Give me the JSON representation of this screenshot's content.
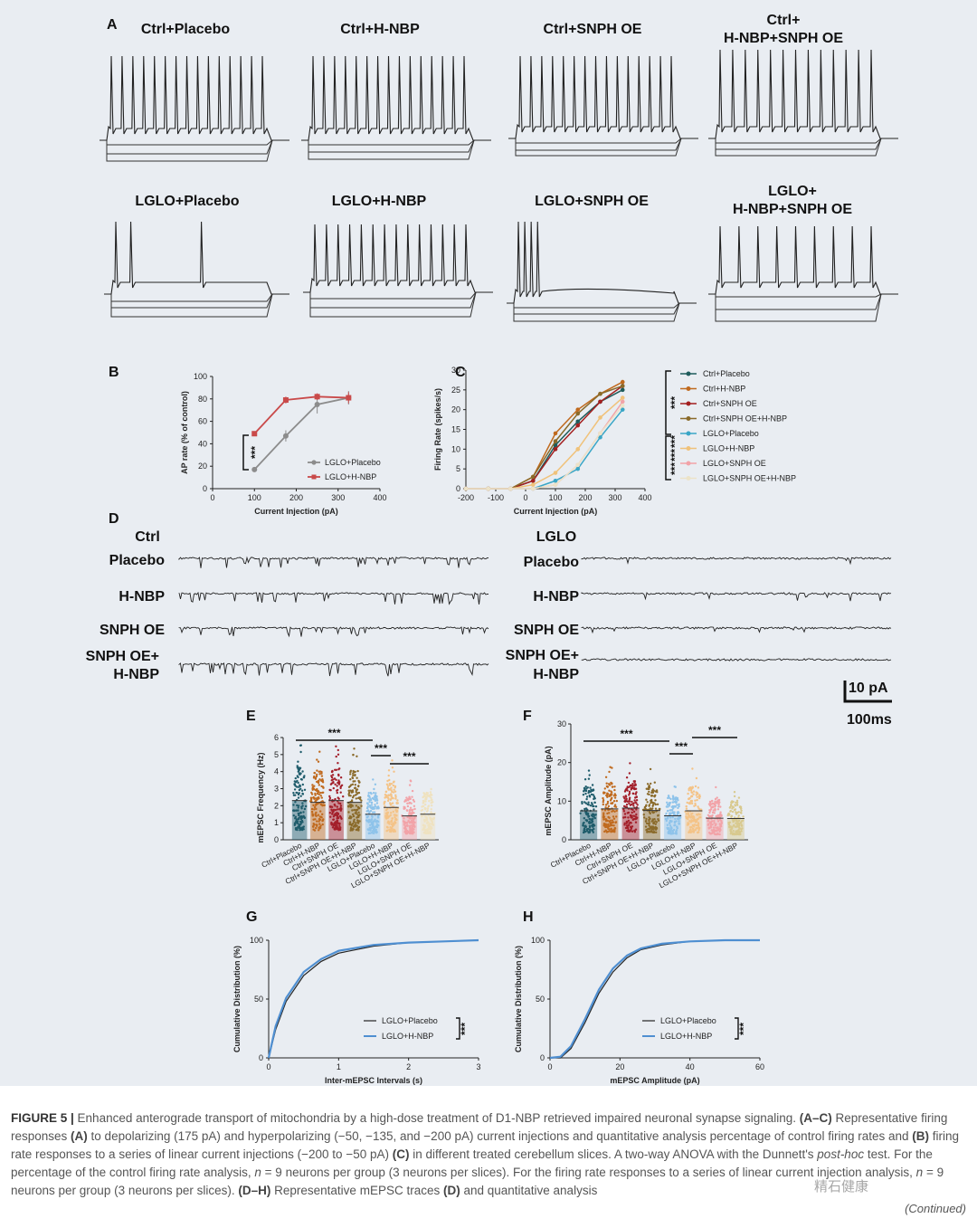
{
  "panel_a": {
    "label": "A",
    "titles": [
      "Ctrl+Placebo",
      "Ctrl+H-NBP",
      "Ctrl+SNPH OE",
      "Ctrl+",
      "H-NBP+SNPH  OE",
      "LGLO+Placebo",
      "LGLO+H-NBP",
      "LGLO+SNPH OE",
      "LGLO+",
      "H-NBP+SNPH  OE"
    ]
  },
  "chart_data": [
    {
      "panel": "B",
      "type": "line",
      "xlabel": "Current Injection (pA)",
      "ylabel": "AP rate (% of control)",
      "xlim": [
        0,
        400
      ],
      "ylim": [
        0,
        100
      ],
      "xticks": [
        "0",
        "100",
        "200",
        "300",
        "400"
      ],
      "yticks": [
        "0",
        "20",
        "40",
        "60",
        "80",
        "100"
      ],
      "x": [
        100,
        175,
        250,
        325
      ],
      "series": [
        {
          "name": "LGLO+Placebo",
          "color": "#8c8c8c",
          "values": [
            17,
            47,
            75,
            81
          ],
          "err": [
            1,
            5,
            8,
            6
          ]
        },
        {
          "name": "LGLO+H-NBP",
          "color": "#c94a4a",
          "values": [
            49,
            79,
            82,
            81
          ],
          "err": [
            1,
            3,
            3,
            5
          ]
        }
      ],
      "significance": "***"
    },
    {
      "panel": "C",
      "type": "line",
      "xlabel": "Current Injection (pA)",
      "ylabel": "Firing Rate (spikes/s)",
      "xlim": [
        -200,
        400
      ],
      "ylim": [
        0,
        30
      ],
      "xticks": [
        "-200",
        "-100",
        "0",
        "100",
        "200",
        "300",
        "400"
      ],
      "yticks": [
        "0",
        "5",
        "10",
        "15",
        "20",
        "25",
        "30"
      ],
      "x": [
        -200,
        -125,
        -50,
        25,
        100,
        175,
        250,
        325
      ],
      "series": [
        {
          "name": "Ctrl+Placebo",
          "color": "#1f5c5c",
          "values": [
            0,
            0,
            0,
            2,
            11,
            17,
            22,
            25
          ]
        },
        {
          "name": "Ctrl+H-NBP",
          "color": "#c06a1e",
          "values": [
            0,
            0,
            0,
            3,
            14,
            20,
            24,
            27
          ]
        },
        {
          "name": "Ctrl+SNPH OE",
          "color": "#a31f1f",
          "values": [
            0,
            0,
            0,
            2,
            10,
            16,
            22,
            26
          ]
        },
        {
          "name": "Ctrl+SNPH OE+H-NBP",
          "color": "#8a6a2a",
          "values": [
            0,
            0,
            0,
            3,
            12,
            19,
            24,
            26
          ]
        },
        {
          "name": "LGLO+Placebo",
          "color": "#3aa6c6",
          "values": [
            0,
            0,
            0,
            0,
            2,
            5,
            13,
            20
          ]
        },
        {
          "name": "LGLO+H-NBP",
          "color": "#f0c27a",
          "values": [
            0,
            0,
            0,
            1,
            4,
            10,
            18,
            23
          ]
        },
        {
          "name": "LGLO+SNPH OE",
          "color": "#f2a3a8",
          "values": [
            0,
            0,
            0,
            0,
            1,
            6,
            14,
            22
          ]
        },
        {
          "name": "LGLO+SNPH OE+H-NBP",
          "color": "#ece3c8",
          "values": [
            0,
            0,
            0,
            0,
            1,
            6,
            14,
            21
          ]
        }
      ],
      "significance": [
        "***",
        "***",
        "***",
        "***"
      ]
    },
    {
      "panel": "E",
      "type": "bar",
      "ylabel": "mEPSC Frequency (Hz)",
      "ylim": [
        0,
        6
      ],
      "yticks": [
        "0",
        "1",
        "2",
        "3",
        "4",
        "5",
        "6"
      ],
      "categories": [
        "Ctrl+Placebo",
        "Ctrl+H-NBP",
        "Ctrl+SNPH OE",
        "Ctrl+SNPH OE+H-NBP",
        "LGLO+Placebo",
        "LGLO+H-NBP",
        "LGLO+SNPH OE",
        "LGLO+SNPH OE+H-NBP"
      ],
      "values": [
        2.3,
        2.2,
        2.3,
        2.2,
        1.5,
        1.9,
        1.4,
        1.5
      ],
      "colors": [
        "#1f5c6b",
        "#c06a1e",
        "#a31f2a",
        "#8a6a2a",
        "#8ec3ea",
        "#f4c387",
        "#f2a3a8",
        "#efe2c0"
      ],
      "significance": [
        "***",
        "***",
        "***"
      ]
    },
    {
      "panel": "F",
      "type": "bar",
      "ylabel": "mEPSC Amplitude (pA)",
      "ylim": [
        0,
        30
      ],
      "yticks": [
        "0",
        "10",
        "20",
        "30"
      ],
      "categories": [
        "Ctrl+Placebo",
        "Ctrl+H-NBP",
        "Ctrl+SNPH OE",
        "Ctrl+SNPH OE+H-NBP",
        "LGLO+Placebo",
        "LGLO+H-NBP",
        "LGLO+SNPH OE",
        "LGLO+SNPH OE+H-NBP"
      ],
      "values": [
        7.5,
        8.0,
        8.2,
        7.6,
        6.2,
        7.5,
        5.6,
        5.5
      ],
      "colors": [
        "#1f5c6b",
        "#c06a1e",
        "#a31f2a",
        "#8a6a2a",
        "#8ec3ea",
        "#f4c387",
        "#f2a3a8",
        "#d8c98e"
      ],
      "significance": [
        "***",
        "***",
        "***"
      ]
    },
    {
      "panel": "G",
      "type": "line",
      "xlabel": "Inter-mEPSC Intervals (s)",
      "ylabel": "Cumulative Distribution (%)",
      "xlim": [
        0,
        3
      ],
      "ylim": [
        0,
        100
      ],
      "xticks": [
        "0",
        "1",
        "2",
        "3"
      ],
      "yticks": [
        "0",
        "50",
        "100"
      ],
      "x": [
        0,
        0.1,
        0.25,
        0.5,
        0.75,
        1.0,
        1.5,
        2.0,
        2.5,
        3.0
      ],
      "series": [
        {
          "name": "LGLO+Placebo",
          "color": "#222222",
          "values": [
            0,
            24,
            48,
            70,
            82,
            89,
            95,
            98,
            99,
            100
          ]
        },
        {
          "name": "LGLO+H-NBP",
          "color": "#4f8fd1",
          "values": [
            0,
            27,
            51,
            73,
            84,
            91,
            96,
            98,
            99,
            100
          ]
        }
      ],
      "significance": "***"
    },
    {
      "panel": "H",
      "type": "line",
      "xlabel": "mEPSC Amplitude (pA)",
      "ylabel": "Cumulative Distribution (%)",
      "xlim": [
        0,
        60
      ],
      "ylim": [
        0,
        100
      ],
      "xticks": [
        "0",
        "20",
        "40",
        "60"
      ],
      "yticks": [
        "0",
        "50",
        "100"
      ],
      "x": [
        0,
        3,
        6,
        10,
        14,
        18,
        22,
        26,
        32,
        40,
        50,
        60
      ],
      "series": [
        {
          "name": "LGLO+Placebo",
          "color": "#222222",
          "values": [
            0,
            0,
            8,
            30,
            55,
            73,
            85,
            92,
            96,
            99,
            100,
            100
          ]
        },
        {
          "name": "LGLO+H-NBP",
          "color": "#4f8fd1",
          "values": [
            0,
            1,
            10,
            33,
            58,
            76,
            87,
            93,
            97,
            99,
            100,
            100
          ]
        }
      ],
      "significance": "***"
    }
  ],
  "panel_labels": {
    "b": "B",
    "c": "C",
    "d": "D",
    "e": "E",
    "f": "F",
    "g": "G",
    "h": "H"
  },
  "panel_d": {
    "ctrl_title": "Ctrl",
    "lglo_title": "LGLO",
    "rows": [
      "Placebo",
      "H-NBP",
      "SNPH OE",
      "SNPH OE+",
      "H-NBP"
    ],
    "scale_y": "10 pA",
    "scale_x": "100ms"
  },
  "caption": {
    "fig_label": "FIGURE 5 |",
    "s1": " Enhanced anterograde transport of mitochondria by a high-dose treatment of D1-NBP retrieved impaired neuronal synapse signaling. ",
    "k1": "(A–C)",
    "s2": " Representative firing responses ",
    "k2": "(A)",
    "s3": " to depolarizing (175 pA) and hyperpolarizing (−50, −135, and −200 pA) current injections and quantitative analysis percentage of control firing rates and ",
    "k3": "(B)",
    "s4": " firing rate responses to a series of linear current injections (−200 to −50 pA) ",
    "k4": "(C)",
    "s5": " in different treated cerebellum slices. A two-way ANOVA with the Dunnett's ",
    "i1": "post-hoc",
    "s6": " test. For the percentage of the control firing rate analysis, ",
    "i2": "n",
    "s7": " = 9 neurons per group (3 neurons per slices). For the firing rate responses to a series of linear current injection analysis, ",
    "i3": "n",
    "s8": " = 9 neurons per group (3 neurons per slices). ",
    "k5": "(D–H)",
    "s9": " Representative mEPSC traces ",
    "k6": "(D)",
    "s10": " and quantitative analysis",
    "continued": "(Continued)",
    "watermark": "精石健康"
  }
}
